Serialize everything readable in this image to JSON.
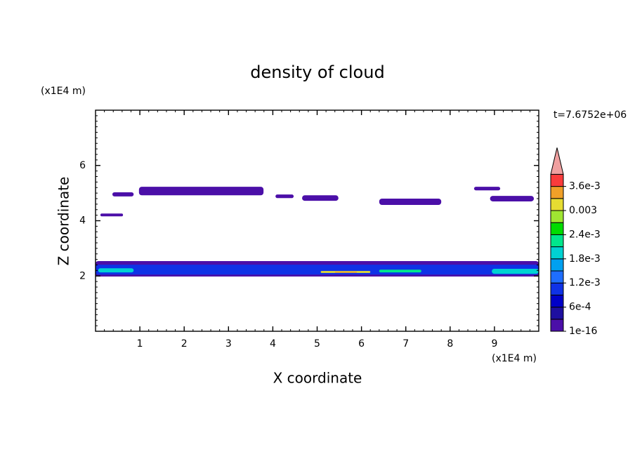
{
  "chart_data": {
    "type": "contour",
    "title": "density of cloud",
    "xlabel": "X coordinate",
    "ylabel": "Z coordinate",
    "xunit": "(x1E4 m)",
    "yunit": "(x1E4 m)",
    "annotation": "t=7.6752e+06",
    "xlim": [
      0,
      10
    ],
    "ylim": [
      0,
      8
    ],
    "xticks": [
      1,
      2,
      3,
      4,
      5,
      6,
      7,
      8,
      9
    ],
    "yticks": [
      2,
      4,
      6
    ],
    "colors": [
      "#4b0fa8",
      "#1e0fa0",
      "#0000c8",
      "#0f32e6",
      "#1e6eff",
      "#00a0f0",
      "#00d2d2",
      "#00e68c",
      "#00dc00",
      "#a0e632",
      "#e6dc32",
      "#f0a028",
      "#fa3c3c",
      "#f0a0a0"
    ],
    "colorbar_ticks": [
      {
        "value": 1e-16,
        "label": "1e-16"
      },
      {
        "value": 0.0006,
        "label": "6e-4"
      },
      {
        "value": 0.0012,
        "label": "1.2e-3"
      },
      {
        "value": 0.0018,
        "label": "1.8e-3"
      },
      {
        "value": 0.0024,
        "label": "2.4e-3"
      },
      {
        "value": 0.003,
        "label": "0.003"
      },
      {
        "value": 0.0036,
        "label": "3.6e-3"
      }
    ],
    "colorbar_step": 0.0003,
    "patches": [
      {
        "x": [
          0.38,
          0.86
        ],
        "z": [
          4.88,
          5.03
        ],
        "level": 0
      },
      {
        "x": [
          0.11,
          0.62
        ],
        "z": [
          4.16,
          4.26
        ],
        "level": 0
      },
      {
        "x": [
          0.98,
          3.79
        ],
        "z": [
          4.92,
          5.23
        ],
        "level": 0
      },
      {
        "x": [
          4.06,
          4.47
        ],
        "z": [
          4.82,
          4.95
        ],
        "level": 0
      },
      {
        "x": [
          4.66,
          5.48
        ],
        "z": [
          4.72,
          4.92
        ],
        "level": 0
      },
      {
        "x": [
          6.4,
          7.8
        ],
        "z": [
          4.57,
          4.8
        ],
        "level": 0
      },
      {
        "x": [
          8.54,
          9.13
        ],
        "z": [
          5.1,
          5.23
        ],
        "level": 0
      },
      {
        "x": [
          8.9,
          9.89
        ],
        "z": [
          4.7,
          4.9
        ],
        "level": 0
      },
      {
        "x": [
          0,
          10
        ],
        "z": [
          1.98,
          2.54
        ],
        "level": 0
      },
      {
        "x": [
          0,
          10
        ],
        "z": [
          2.05,
          2.41
        ],
        "level": 3
      },
      {
        "x": [
          0.06,
          0.86
        ],
        "z": [
          2.13,
          2.28
        ],
        "level": 6
      },
      {
        "x": [
          5.08,
          6.2
        ],
        "z": [
          2.11,
          2.18
        ],
        "level": 10
      },
      {
        "x": [
          5.4,
          5.9
        ],
        "z": [
          2.12,
          2.16
        ],
        "level": 11
      },
      {
        "x": [
          6.4,
          7.35
        ],
        "z": [
          2.13,
          2.23
        ],
        "level": 7
      },
      {
        "x": [
          8.94,
          10
        ],
        "z": [
          2.08,
          2.26
        ],
        "level": 6
      }
    ]
  }
}
